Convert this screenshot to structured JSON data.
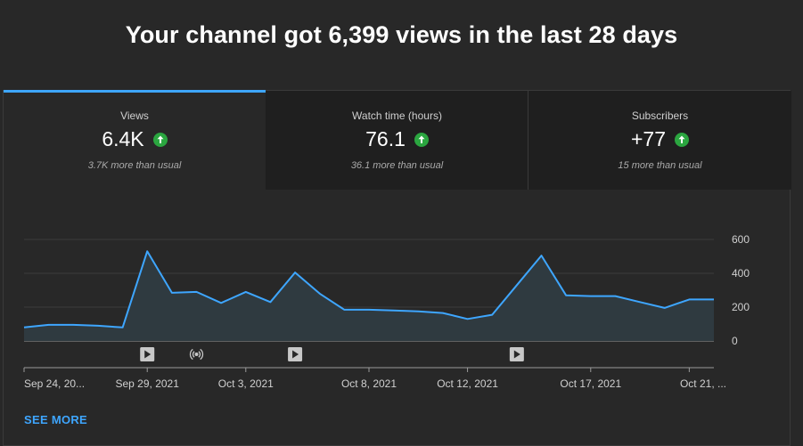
{
  "headline": "Your channel got 6,399 views in the last 28 days",
  "tabs": [
    {
      "label": "Views",
      "value": "6.4K",
      "sub": "3.7K more than usual",
      "icon": "arrow-up-circle-icon"
    },
    {
      "label": "Watch time (hours)",
      "value": "76.1",
      "sub": "36.1 more than usual",
      "icon": "arrow-up-circle-icon"
    },
    {
      "label": "Subscribers",
      "value": "+77",
      "sub": "15 more than usual",
      "icon": "arrow-up-circle-icon"
    }
  ],
  "colors": {
    "accent": "#3ea6ff",
    "line": "#3ea6ff",
    "up": "#2ba640",
    "background": "#282828"
  },
  "chart_data": {
    "type": "area",
    "x": [
      "Sep 24",
      "Sep 25",
      "Sep 26",
      "Sep 27",
      "Sep 28",
      "Sep 29",
      "Sep 30",
      "Oct 1",
      "Oct 2",
      "Oct 3",
      "Oct 4",
      "Oct 5",
      "Oct 6",
      "Oct 7",
      "Oct 8",
      "Oct 9",
      "Oct 10",
      "Oct 11",
      "Oct 12",
      "Oct 13",
      "Oct 14",
      "Oct 15",
      "Oct 16",
      "Oct 17",
      "Oct 18",
      "Oct 19",
      "Oct 20",
      "Oct 21",
      "Oct 22"
    ],
    "series": [
      {
        "values": [
          80,
          95,
          95,
          90,
          80,
          530,
          285,
          290,
          225,
          290,
          230,
          405,
          280,
          185,
          185,
          180,
          175,
          165,
          130,
          155,
          330,
          505,
          270,
          265,
          265,
          230,
          195,
          245,
          245
        ]
      }
    ],
    "ylim": [
      0,
      600
    ],
    "yticks": [
      0,
      200,
      400,
      600
    ],
    "xtick_labels": [
      "Sep 24, 20...",
      "Sep 29, 2021",
      "Oct 3, 2021",
      "Oct 8, 2021",
      "Oct 12, 2021",
      "Oct 17, 2021",
      "Oct 21, ..."
    ],
    "xtick_positions": [
      0,
      5,
      9,
      14,
      18,
      23,
      27
    ],
    "markers": [
      {
        "type": "video-icon",
        "index": 5
      },
      {
        "type": "live-icon",
        "index": 7
      },
      {
        "type": "video-icon",
        "index": 11
      },
      {
        "type": "video-icon",
        "index": 20
      }
    ],
    "grid": true
  },
  "see_more": "SEE MORE"
}
